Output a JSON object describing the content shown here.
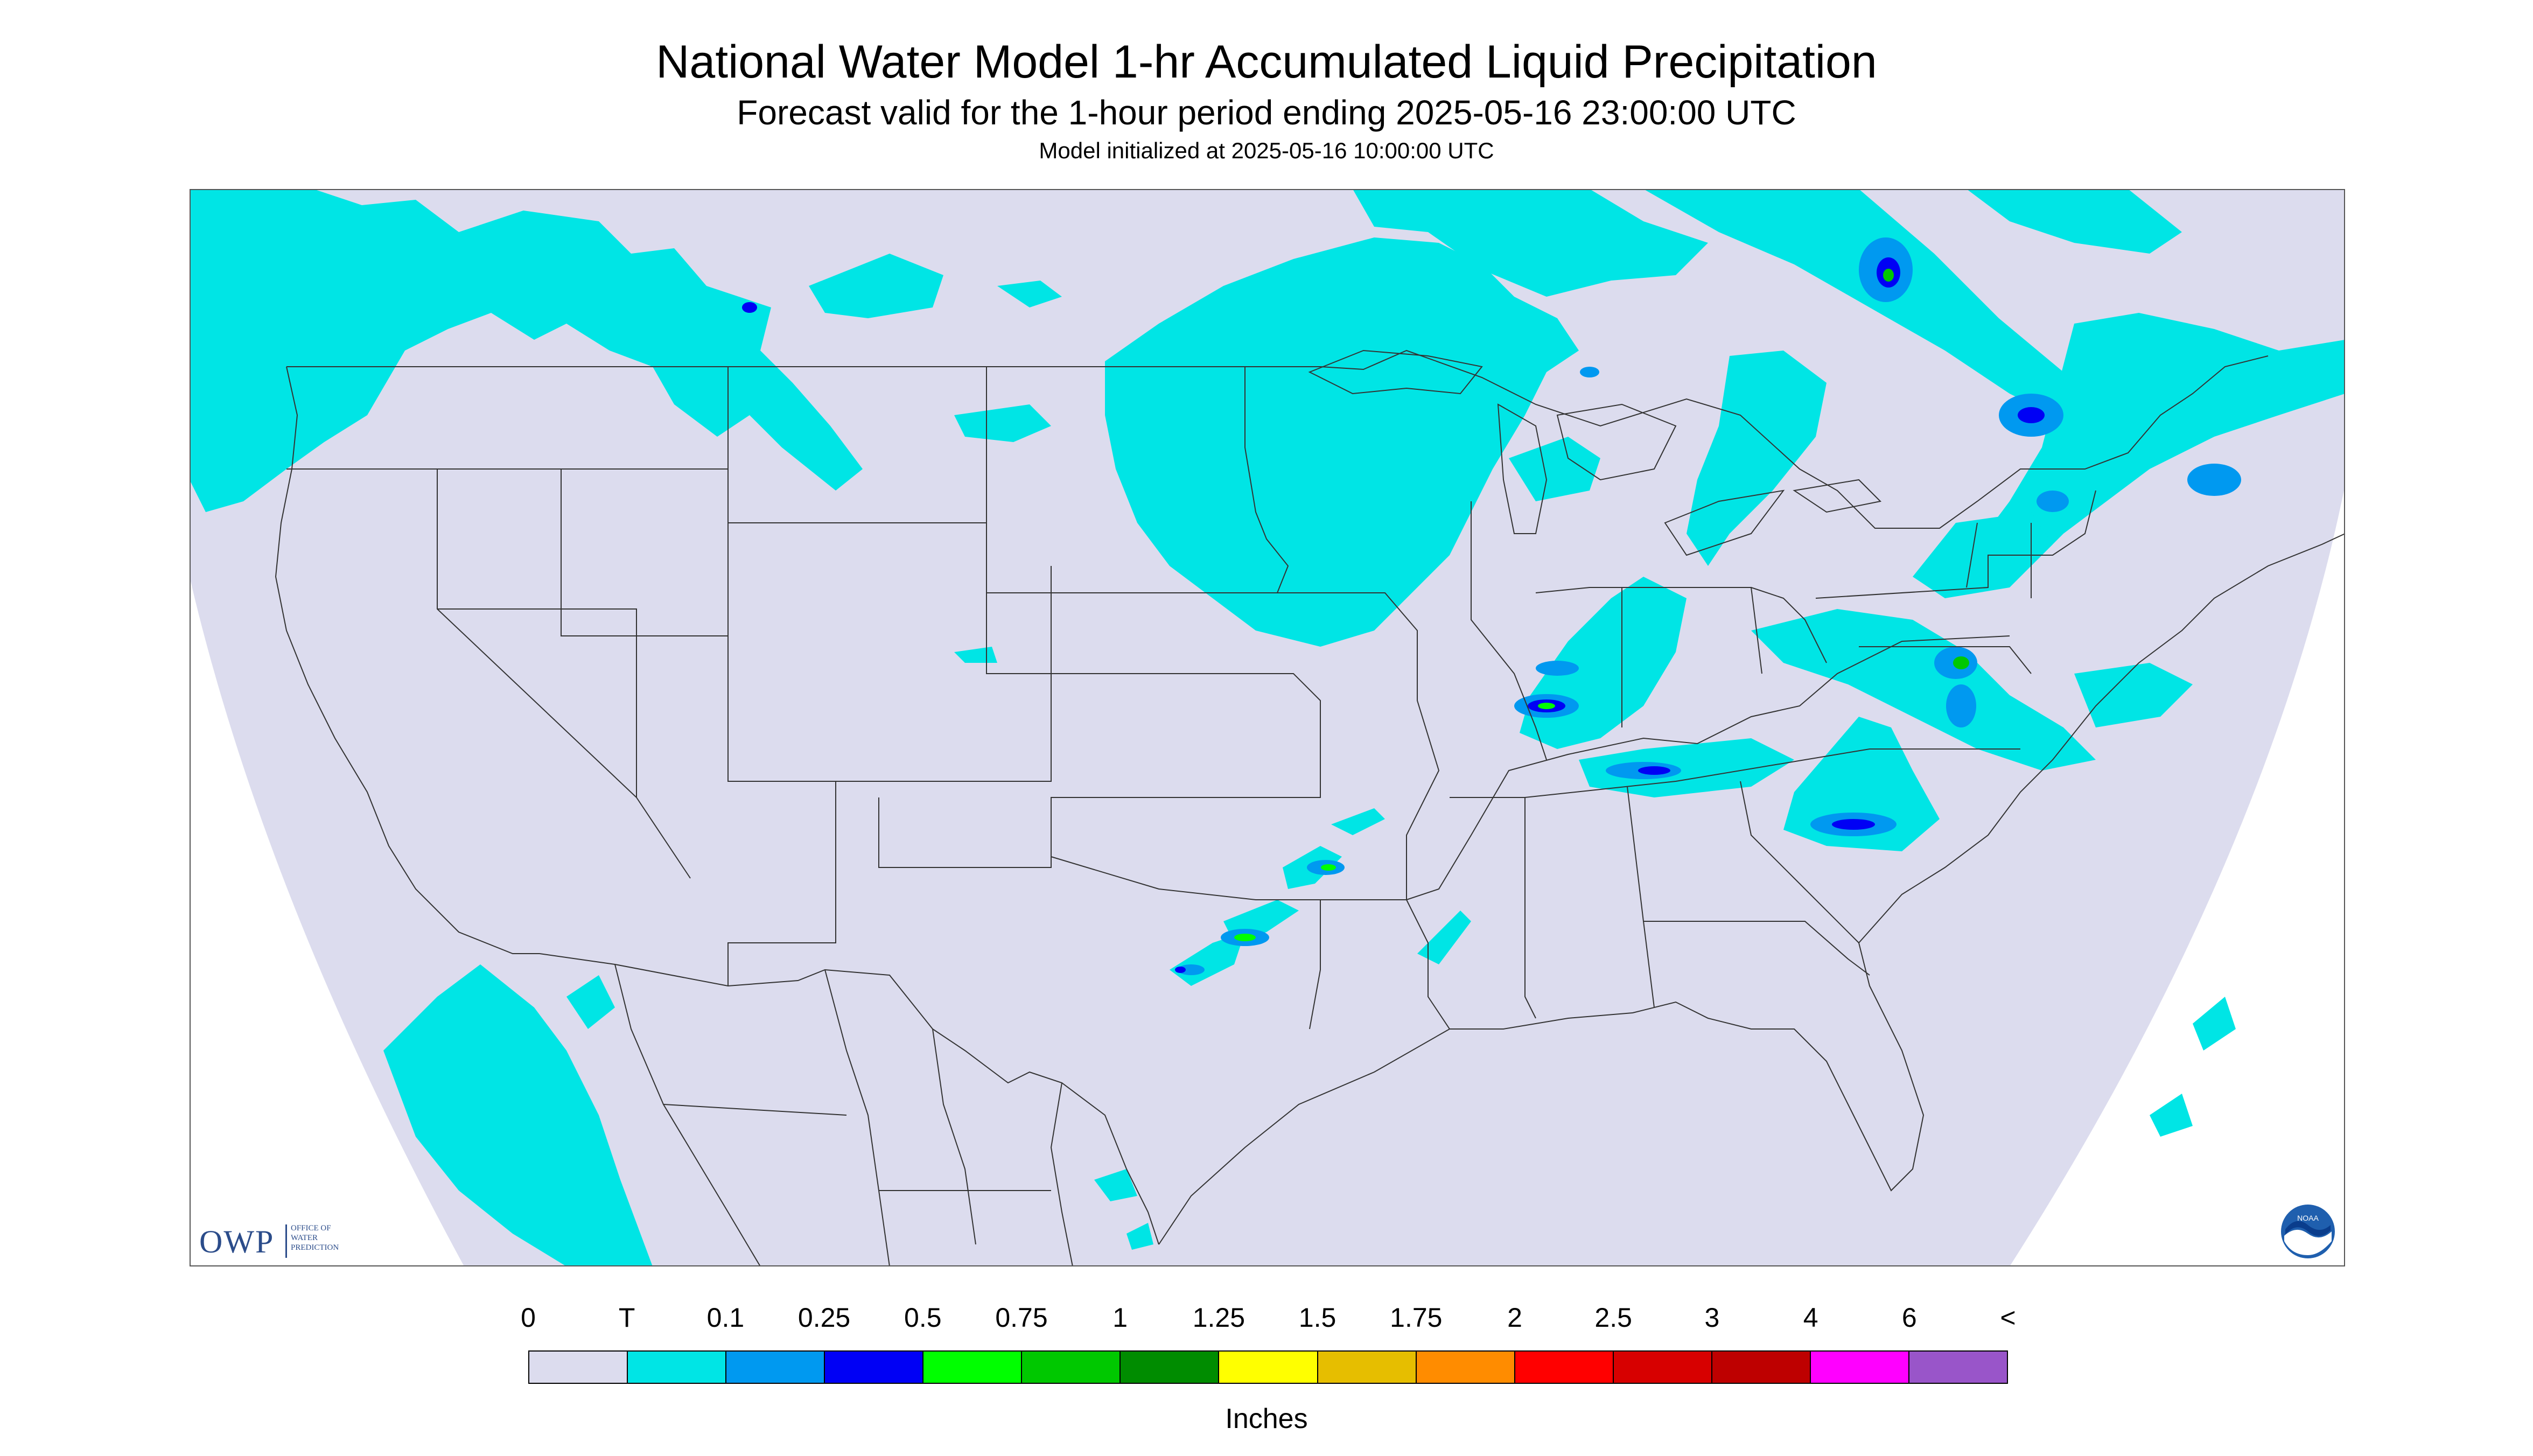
{
  "title": "National Water Model 1-hr Accumulated Liquid Precipitation",
  "subtitle": "Forecast valid for the 1-hour period ending 2025-05-16 23:00:00 UTC",
  "init_line": "Model initialized at 2025-05-16 10:00:00 UTC",
  "logos": {
    "owp_big": "OWP",
    "owp_small": [
      "OFFICE OF",
      "WATER",
      "PREDICTION"
    ],
    "noaa": "NOAA"
  },
  "colors": {
    "background_domain": "#dcdcee",
    "light_precip": "#00e5e5",
    "outside_domain": "#ffffff",
    "state_lines": "#333333"
  },
  "legend": {
    "tick_labels": [
      "0",
      "T",
      "0.1",
      "0.25",
      "0.5",
      "0.75",
      "1",
      "1.25",
      "1.5",
      "1.75",
      "2",
      "2.5",
      "3",
      "4",
      "6",
      "<"
    ],
    "colors": [
      "#dcdcee",
      "#00e5e5",
      "#0099f0",
      "#0000f5",
      "#00ff00",
      "#00c800",
      "#008c00",
      "#ffff00",
      "#e6be00",
      "#ff8c00",
      "#ff0000",
      "#d70000",
      "#be0000",
      "#ff00ff",
      "#9955c9"
    ],
    "units": "Inches"
  },
  "map_features": {
    "projection": "lambert conformal, CONUS domain",
    "precip_areas": [
      "Pacific Northwest / northern Rockies light precipitation",
      "Northern Plains / Upper Midwest large light precipitation shield",
      "Great Lakes / Michigan band",
      "Ohio Valley band with embedded heavier cores",
      "Mid-Atlantic / Northeast scattered cells",
      "Southern Plains (Oklahoma/Texas) narrow line of cells",
      "Southern Ontario / Quebec / New England bands",
      "Offshore California and Baja light precipitation"
    ]
  }
}
